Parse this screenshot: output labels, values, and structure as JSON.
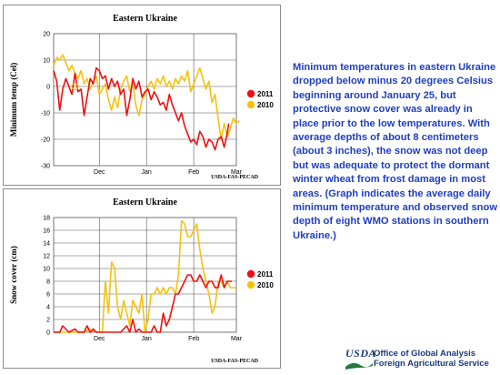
{
  "description": "Minimum temperatures in eastern Ukraine dropped below minus 20 degrees Celsius beginning around January 25, but protective snow cover was already in place prior to the low temperatures.  With average depths of about 8 centimeters (about 3 inches), the snow was not deep but was adequate to protect the dormant winter wheat from frost damage in most areas. (Graph indicates the average daily minimum temperature and observed snow depth of eight WMO stations in southern Ukraine.)",
  "logo": {
    "usda": "USDA",
    "line1": "Office of Global Analysis",
    "line2": "Foreign Agricultural Service"
  },
  "colors": {
    "series_2011": "#ee1111",
    "series_2010": "#f5c20e",
    "text_blue": "#1f3fbf"
  },
  "chart_data": [
    {
      "type": "line",
      "title": "Eastern Ukraine",
      "ylabel": "Minimum temp (Cel)",
      "xlabel": "",
      "credit": "USDA-FAS-PECAD",
      "ylim": [
        -30,
        20
      ],
      "yticks": [
        20,
        10,
        0,
        -10,
        -20,
        -30
      ],
      "xlim": [
        0,
        120
      ],
      "xticks": [
        {
          "label": "Dec",
          "x": 30
        },
        {
          "label": "Jan",
          "x": 61
        },
        {
          "label": "Feb",
          "x": 92
        },
        {
          "label": "Mar",
          "x": 120
        }
      ],
      "grid": true,
      "legend_position": "right",
      "series": [
        {
          "name": "2011",
          "color": "#ee1111",
          "values": [
            [
              0,
              6
            ],
            [
              2,
              2
            ],
            [
              4,
              -9
            ],
            [
              6,
              -1
            ],
            [
              8,
              3
            ],
            [
              10,
              0
            ],
            [
              12,
              -3
            ],
            [
              14,
              5
            ],
            [
              16,
              -2
            ],
            [
              18,
              -1
            ],
            [
              20,
              -11
            ],
            [
              22,
              -4
            ],
            [
              24,
              3
            ],
            [
              26,
              1
            ],
            [
              28,
              7
            ],
            [
              30,
              6
            ],
            [
              32,
              3
            ],
            [
              34,
              4
            ],
            [
              36,
              -1
            ],
            [
              38,
              3
            ],
            [
              40,
              0
            ],
            [
              42,
              2
            ],
            [
              44,
              -3
            ],
            [
              46,
              -1
            ],
            [
              48,
              -11
            ],
            [
              50,
              -5
            ],
            [
              52,
              3
            ],
            [
              54,
              -1
            ],
            [
              56,
              2
            ],
            [
              58,
              -4
            ],
            [
              60,
              -2
            ],
            [
              62,
              -1
            ],
            [
              64,
              -5
            ],
            [
              66,
              -2
            ],
            [
              68,
              -4
            ],
            [
              70,
              -7
            ],
            [
              72,
              -6
            ],
            [
              74,
              -9
            ],
            [
              76,
              -3
            ],
            [
              78,
              -7
            ],
            [
              80,
              -10
            ],
            [
              82,
              -13
            ],
            [
              84,
              -10
            ],
            [
              86,
              -15
            ],
            [
              88,
              -18
            ],
            [
              90,
              -21
            ],
            [
              92,
              -20
            ],
            [
              94,
              -22
            ],
            [
              96,
              -17
            ],
            [
              98,
              -19
            ],
            [
              100,
              -23
            ],
            [
              102,
              -20
            ],
            [
              104,
              -21
            ],
            [
              106,
              -24
            ],
            [
              108,
              -20
            ],
            [
              110,
              -19
            ],
            [
              112,
              -23
            ],
            [
              114,
              -18
            ],
            [
              115,
              -14
            ]
          ]
        },
        {
          "name": "2010",
          "color": "#f5c20e",
          "values": [
            [
              0,
              8
            ],
            [
              2,
              11
            ],
            [
              4,
              10
            ],
            [
              6,
              12
            ],
            [
              8,
              9
            ],
            [
              10,
              6
            ],
            [
              12,
              8
            ],
            [
              14,
              5
            ],
            [
              16,
              3
            ],
            [
              18,
              6
            ],
            [
              20,
              1
            ],
            [
              22,
              3
            ],
            [
              24,
              -1
            ],
            [
              26,
              2
            ],
            [
              28,
              4
            ],
            [
              30,
              -3
            ],
            [
              32,
              -1
            ],
            [
              34,
              1
            ],
            [
              36,
              -5
            ],
            [
              38,
              -9
            ],
            [
              40,
              -4
            ],
            [
              42,
              -8
            ],
            [
              44,
              -1
            ],
            [
              46,
              2
            ],
            [
              48,
              4
            ],
            [
              50,
              -2
            ],
            [
              52,
              1
            ],
            [
              54,
              -7
            ],
            [
              56,
              -11
            ],
            [
              58,
              -5
            ],
            [
              60,
              -3
            ],
            [
              62,
              0
            ],
            [
              64,
              2
            ],
            [
              66,
              -1
            ],
            [
              68,
              3
            ],
            [
              70,
              1
            ],
            [
              72,
              4
            ],
            [
              74,
              0
            ],
            [
              76,
              2
            ],
            [
              78,
              -1
            ],
            [
              80,
              3
            ],
            [
              82,
              1
            ],
            [
              84,
              4
            ],
            [
              86,
              2
            ],
            [
              88,
              6
            ],
            [
              90,
              -2
            ],
            [
              92,
              1
            ],
            [
              94,
              4
            ],
            [
              96,
              7
            ],
            [
              98,
              3
            ],
            [
              100,
              -1
            ],
            [
              102,
              2
            ],
            [
              104,
              -6
            ],
            [
              106,
              -3
            ],
            [
              108,
              -12
            ],
            [
              110,
              -20
            ],
            [
              112,
              -14
            ],
            [
              114,
              -19
            ],
            [
              116,
              -16
            ],
            [
              118,
              -12
            ],
            [
              120,
              -14
            ],
            [
              122,
              -13
            ]
          ]
        }
      ],
      "annotation_marker": {
        "x": 14,
        "y": 0,
        "label": "Dec"
      }
    },
    {
      "type": "line",
      "title": "Eastern Ukraine",
      "ylabel": "Snow cover (cm)",
      "xlabel": "",
      "credit": "USDA-FAS-PECAD",
      "ylim": [
        0,
        18
      ],
      "yticks": [
        18,
        16,
        14,
        12,
        10,
        8,
        6,
        4,
        2,
        0
      ],
      "xlim": [
        0,
        120
      ],
      "xticks": [
        {
          "label": "Dec",
          "x": 30
        },
        {
          "label": "Jan",
          "x": 61
        },
        {
          "label": "Feb",
          "x": 92
        },
        {
          "label": "Mar",
          "x": 120
        }
      ],
      "grid": true,
      "legend_position": "right",
      "series": [
        {
          "name": "2011",
          "color": "#ee1111",
          "values": [
            [
              0,
              0
            ],
            [
              4,
              0
            ],
            [
              6,
              1
            ],
            [
              8,
              0.5
            ],
            [
              10,
              0
            ],
            [
              14,
              0.5
            ],
            [
              16,
              0
            ],
            [
              20,
              0
            ],
            [
              22,
              1
            ],
            [
              24,
              0
            ],
            [
              26,
              0.5
            ],
            [
              28,
              0
            ],
            [
              32,
              0
            ],
            [
              40,
              0
            ],
            [
              44,
              0
            ],
            [
              48,
              1
            ],
            [
              50,
              0
            ],
            [
              52,
              2
            ],
            [
              54,
              0
            ],
            [
              56,
              0.5
            ],
            [
              58,
              0
            ],
            [
              60,
              0
            ],
            [
              64,
              0
            ],
            [
              66,
              1
            ],
            [
              68,
              0
            ],
            [
              70,
              0
            ],
            [
              72,
              3
            ],
            [
              74,
              1
            ],
            [
              76,
              2
            ],
            [
              78,
              4
            ],
            [
              80,
              6
            ],
            [
              82,
              6
            ],
            [
              84,
              7
            ],
            [
              86,
              8
            ],
            [
              88,
              9
            ],
            [
              90,
              9
            ],
            [
              92,
              8
            ],
            [
              94,
              8
            ],
            [
              96,
              9
            ],
            [
              98,
              8
            ],
            [
              100,
              7
            ],
            [
              102,
              8
            ],
            [
              104,
              8
            ],
            [
              106,
              7
            ],
            [
              108,
              7
            ],
            [
              110,
              9
            ],
            [
              112,
              7
            ],
            [
              114,
              8
            ],
            [
              116,
              8
            ],
            [
              117,
              8
            ]
          ]
        },
        {
          "name": "2010",
          "color": "#f5c20e",
          "values": [
            [
              0,
              0
            ],
            [
              20,
              0
            ],
            [
              24,
              0.5
            ],
            [
              28,
              0
            ],
            [
              30,
              0
            ],
            [
              32,
              0
            ],
            [
              34,
              8
            ],
            [
              36,
              3
            ],
            [
              38,
              11
            ],
            [
              40,
              10
            ],
            [
              42,
              4
            ],
            [
              44,
              2
            ],
            [
              46,
              5
            ],
            [
              48,
              3
            ],
            [
              50,
              1
            ],
            [
              52,
              5
            ],
            [
              54,
              4
            ],
            [
              56,
              3
            ],
            [
              58,
              6
            ],
            [
              60,
              0
            ],
            [
              62,
              2
            ],
            [
              64,
              6
            ],
            [
              66,
              6
            ],
            [
              68,
              7
            ],
            [
              70,
              6
            ],
            [
              72,
              7
            ],
            [
              74,
              6
            ],
            [
              76,
              7
            ],
            [
              78,
              7
            ],
            [
              80,
              6
            ],
            [
              82,
              9
            ],
            [
              84,
              17.5
            ],
            [
              86,
              17
            ],
            [
              88,
              15
            ],
            [
              90,
              15
            ],
            [
              92,
              16
            ],
            [
              94,
              17
            ],
            [
              96,
              13
            ],
            [
              98,
              10
            ],
            [
              100,
              8
            ],
            [
              102,
              6
            ],
            [
              104,
              3
            ],
            [
              106,
              4
            ],
            [
              108,
              8
            ],
            [
              110,
              8
            ],
            [
              112,
              7
            ],
            [
              114,
              8
            ],
            [
              116,
              7
            ],
            [
              118,
              7
            ],
            [
              120,
              7
            ]
          ]
        }
      ]
    }
  ]
}
